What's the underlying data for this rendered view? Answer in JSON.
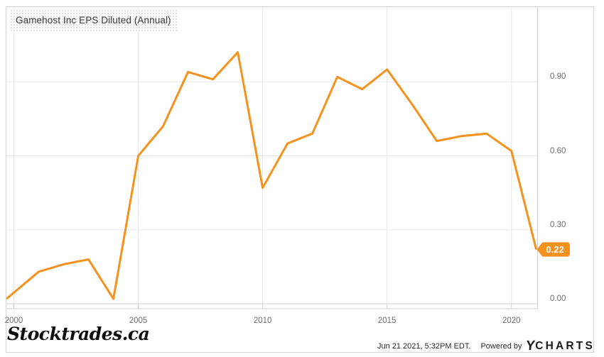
{
  "title": "Gamehost Inc EPS Diluted (Annual)",
  "watermark": "Stocktrades.ca",
  "footer": {
    "timestamp": "Jun 21 2021, 5:32PM EDT.",
    "powered_by": "Powered by",
    "brand_y": "Y",
    "brand_rest": "CHARTS"
  },
  "colors": {
    "line": "#F5921E",
    "tag_background": "#F5921E",
    "grid": "#e8e8e8",
    "axis_border": "#cfcfcf",
    "tick_label": "#6e6e6e"
  },
  "chart_data": {
    "type": "line",
    "title": "Gamehost Inc EPS Diluted (Annual)",
    "xlabel": "",
    "ylabel": "",
    "grid": true,
    "legend_position": "none",
    "xlim": [
      1999.7,
      2021.05
    ],
    "ylim": [
      0,
      1.203
    ],
    "x_ticks": [
      2000,
      2005,
      2010,
      2015,
      2020
    ],
    "y_ticks": [
      {
        "label": "0.00",
        "value": 0.0
      },
      {
        "label": "0.30",
        "value": 0.3
      },
      {
        "label": "0.60",
        "value": 0.6
      },
      {
        "label": "0.90",
        "value": 0.9
      }
    ],
    "series": [
      {
        "name": "Gamehost Inc EPS Diluted (Annual)",
        "x": [
          1999.7,
          2001,
          2002,
          2003,
          2004,
          2005,
          2006,
          2007,
          2008,
          2009,
          2010,
          2011,
          2012,
          2013,
          2014,
          2015,
          2016,
          2017,
          2018,
          2019,
          2020,
          2021
        ],
        "values": [
          0.02,
          0.13,
          0.16,
          0.18,
          0.02,
          0.6,
          0.72,
          0.94,
          0.91,
          1.02,
          0.47,
          0.65,
          0.69,
          0.92,
          0.87,
          0.95,
          0.81,
          0.66,
          0.68,
          0.69,
          0.62,
          0.22
        ]
      }
    ],
    "last_point_label": "0.22"
  }
}
